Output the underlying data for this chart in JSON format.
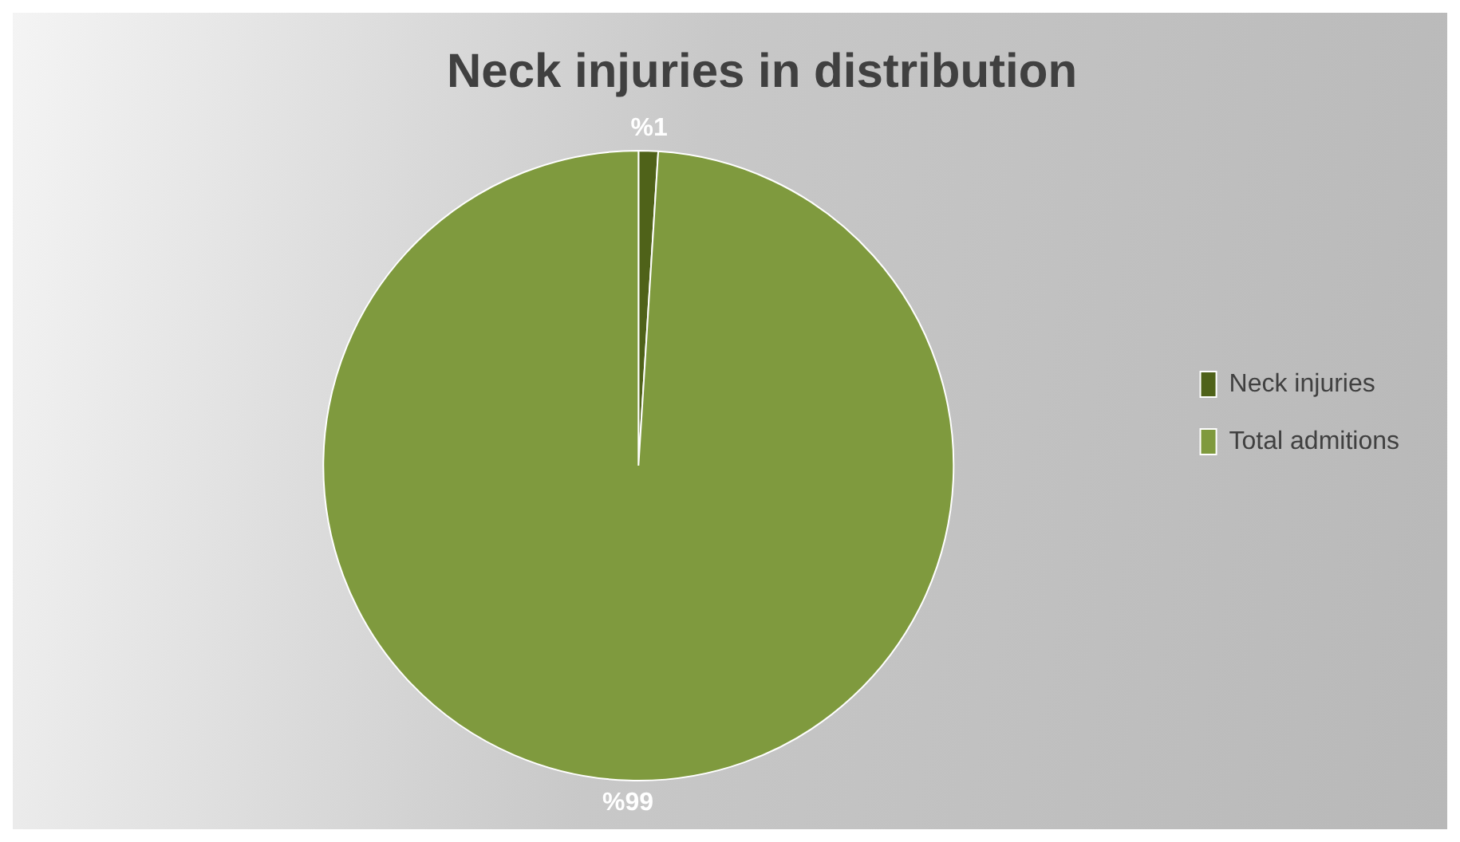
{
  "chart_data": {
    "type": "pie",
    "title": "Neck injuries in distribution",
    "categories": [
      "Neck injuries",
      "Total admitions"
    ],
    "values": [
      1,
      99
    ],
    "colors": [
      "#4f6219",
      "#7f9a3e"
    ],
    "value_labels": [
      "%1",
      "%99"
    ],
    "legend": "right"
  }
}
